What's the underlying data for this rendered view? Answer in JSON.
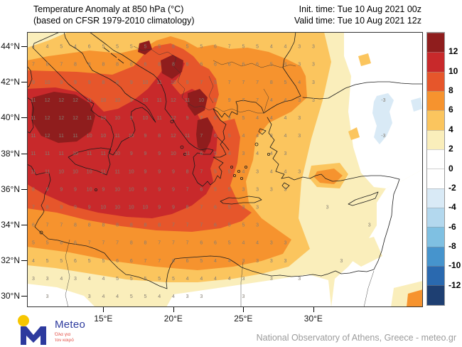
{
  "header": {
    "title_line1": "Temperature Anomaly at 850 hPa (°C)",
    "title_line2": "(based on CFSR 1979-2010 climatology)",
    "init_time": "Init. time: Tue 10 Aug 2021 00z",
    "valid_time": "Valid time: Tue 10 Aug 2021 12z"
  },
  "axes": {
    "lat_ticks": [
      {
        "label": "44°N",
        "value": 44
      },
      {
        "label": "42°N",
        "value": 42
      },
      {
        "label": "40°N",
        "value": 40
      },
      {
        "label": "38°N",
        "value": 38
      },
      {
        "label": "36°N",
        "value": 36
      },
      {
        "label": "34°N",
        "value": 34
      },
      {
        "label": "32°N",
        "value": 32
      },
      {
        "label": "30°N",
        "value": 30
      }
    ],
    "lon_ticks": [
      {
        "label": "15°E",
        "value": 15
      },
      {
        "label": "20°E",
        "value": 20
      },
      {
        "label": "25°E",
        "value": 25
      },
      {
        "label": "30°E",
        "value": 30
      }
    ]
  },
  "colorbar": {
    "labels": [
      "12",
      "10",
      "8",
      "6",
      "4",
      "2",
      "0",
      "-2",
      "-4",
      "-6",
      "-8",
      "-10",
      "-12"
    ],
    "colors_top_to_bottom": [
      "#8f1d1d",
      "#c8292b",
      "#e6562b",
      "#f6932e",
      "#fbc55e",
      "#faeebb",
      "#ffffff",
      "#ffffff",
      "#d9eaf6",
      "#b3d8ee",
      "#7fc0e2",
      "#4694cd",
      "#2a69af",
      "#1e3f72"
    ]
  },
  "chart_data": {
    "type": "heatmap",
    "title": "Temperature Anomaly at 850 hPa (°C)",
    "subtitle": "(based on CFSR 1979-2010 climatology)",
    "init_time": "Tue 10 Aug 2021 00z",
    "valid_time": "Tue 10 Aug 2021 12z",
    "units": "°C",
    "legend_position": "right",
    "colorbar_levels": [
      12,
      10,
      8,
      6,
      4,
      2,
      0,
      -2,
      -4,
      -6,
      -8,
      -10,
      -12
    ],
    "lat_axis": {
      "tick_labels": [
        "44°N",
        "42°N",
        "40°N",
        "38°N",
        "36°N",
        "34°N",
        "32°N",
        "30°N"
      ],
      "range": [
        29.4,
        44.8
      ]
    },
    "lon_axis": {
      "tick_labels": [
        "15°E",
        "20°E",
        "25°E",
        "30°E"
      ],
      "range": [
        9.5,
        37.8
      ]
    },
    "grid": {
      "lats": [
        44,
        43,
        42,
        41,
        40,
        39,
        38,
        37,
        36,
        35,
        34,
        33,
        32,
        31,
        30
      ],
      "lons": [
        10,
        11,
        12,
        13,
        14,
        15,
        16,
        17,
        18,
        19,
        20,
        21,
        22,
        23,
        24,
        25,
        26,
        27,
        28,
        29,
        30,
        31,
        32,
        33,
        34,
        35,
        36
      ],
      "values": [
        [
          4,
          4,
          5,
          4,
          6,
          5,
          5,
          5,
          5,
          5,
          6,
          5,
          5,
          6,
          7,
          5,
          5,
          4,
          4,
          3,
          3,
          null,
          null,
          null,
          null,
          null,
          null
        ],
        [
          7,
          8,
          7,
          8,
          8,
          8,
          8,
          8,
          6,
          8,
          8,
          6,
          6,
          6,
          6,
          6,
          6,
          5,
          4,
          3,
          3,
          null,
          null,
          null,
          null,
          null,
          null
        ],
        [
          9,
          10,
          9,
          9,
          9,
          8,
          8,
          9,
          10,
          11,
          10,
          9,
          7,
          5,
          7,
          7,
          7,
          8,
          5,
          4,
          3,
          null,
          null,
          null,
          null,
          null,
          null
        ],
        [
          11,
          12,
          12,
          12,
          11,
          10,
          10,
          9,
          10,
          11,
          12,
          11,
          10,
          9,
          9,
          7,
          7,
          4,
          4,
          3,
          3,
          null,
          null,
          null,
          null,
          -3,
          null
        ],
        [
          11,
          12,
          12,
          12,
          11,
          10,
          10,
          9,
          10,
          11,
          12,
          9,
          7,
          8,
          9,
          5,
          4,
          4,
          4,
          3,
          null,
          null,
          null,
          null,
          null,
          null,
          null
        ],
        [
          11,
          12,
          11,
          11,
          10,
          10,
          11,
          10,
          9,
          8,
          12,
          11,
          7,
          6,
          5,
          4,
          4,
          3,
          4,
          3,
          null,
          null,
          null,
          null,
          null,
          -3,
          null
        ],
        [
          11,
          11,
          11,
          10,
          11,
          11,
          10,
          9,
          9,
          9,
          10,
          11,
          6,
          5,
          4,
          3,
          4,
          4,
          3,
          null,
          null,
          null,
          null,
          null,
          null,
          null,
          null
        ],
        [
          11,
          11,
          10,
          10,
          10,
          11,
          11,
          10,
          9,
          9,
          9,
          8,
          7,
          5,
          5,
          4,
          3,
          4,
          4,
          3,
          null,
          null,
          null,
          null,
          null,
          null,
          null
        ],
        [
          8,
          9,
          9,
          9,
          10,
          9,
          10,
          10,
          9,
          9,
          9,
          7,
          6,
          5,
          5,
          3,
          3,
          3,
          3,
          null,
          null,
          null,
          null,
          null,
          null,
          null,
          null
        ],
        [
          7,
          8,
          9,
          9,
          9,
          10,
          10,
          10,
          10,
          9,
          9,
          8,
          7,
          6,
          5,
          3,
          3,
          null,
          null,
          null,
          null,
          3,
          null,
          null,
          null,
          null,
          null
        ],
        [
          6,
          7,
          7,
          8,
          8,
          8,
          8,
          8,
          8,
          8,
          7,
          7,
          7,
          6,
          5,
          5,
          3,
          null,
          null,
          null,
          null,
          null,
          null,
          null,
          3,
          null,
          null
        ],
        [
          5,
          5,
          6,
          6,
          7,
          7,
          7,
          8,
          8,
          7,
          7,
          7,
          6,
          6,
          5,
          4,
          4,
          3,
          3,
          null,
          null,
          null,
          null,
          null,
          null,
          null,
          null
        ],
        [
          4,
          5,
          5,
          6,
          5,
          5,
          6,
          6,
          7,
          7,
          6,
          6,
          5,
          4,
          4,
          3,
          3,
          3,
          3,
          null,
          null,
          null,
          3,
          null,
          null,
          null,
          null
        ],
        [
          3,
          3,
          4,
          3,
          4,
          4,
          5,
          5,
          5,
          5,
          5,
          4,
          4,
          4,
          4,
          3,
          null,
          3,
          null,
          3,
          null,
          null,
          null,
          null,
          null,
          null,
          null
        ],
        [
          null,
          3,
          null,
          null,
          3,
          4,
          4,
          5,
          5,
          4,
          4,
          3,
          3,
          null,
          null,
          3,
          null,
          null,
          null,
          null,
          null,
          null,
          null,
          null,
          null,
          null,
          null
        ]
      ]
    }
  },
  "footer": {
    "credit": "National Observatory of Athens, Greece - meteo.gr"
  },
  "logo": {
    "brand": "Meteo",
    "tagline_line1": "Όλα για",
    "tagline_line2": "τον καιρό"
  }
}
